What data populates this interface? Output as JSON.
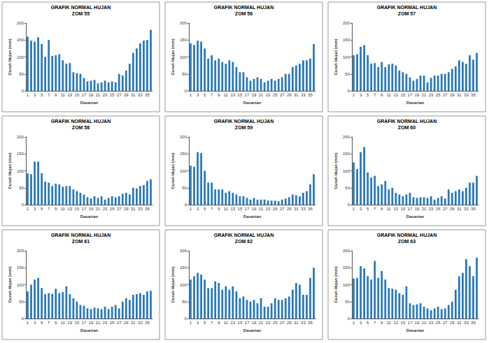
{
  "chart_data": [
    {
      "type": "bar",
      "title": "GRAFIK NORMAL HUJAN",
      "subtitle": "ZOM 55",
      "x_label": "Dasarian",
      "y_label": "Curah Hujan (mm)",
      "categories": [
        1,
        null,
        3,
        null,
        5,
        null,
        7,
        null,
        9,
        null,
        11,
        null,
        13,
        null,
        15,
        null,
        17,
        null,
        19,
        null,
        21,
        null,
        23,
        null,
        25,
        null,
        27,
        null,
        29,
        null,
        31,
        null,
        33,
        null,
        35,
        null
      ],
      "values": [
        160,
        148,
        145,
        158,
        138,
        100,
        150,
        103,
        105,
        108,
        90,
        80,
        82,
        55,
        52,
        50,
        38,
        28,
        30,
        32,
        22,
        25,
        30,
        25,
        28,
        25,
        50,
        45,
        60,
        80,
        112,
        125,
        140,
        148,
        150,
        180
      ],
      "color": "#2878b8",
      "ylim": [
        0,
        200
      ],
      "yticks": [
        0,
        50,
        100,
        150,
        200
      ],
      "grid": false
    },
    {
      "type": "bar",
      "title": "GRAFIK NORMAL HUJAN",
      "subtitle": "ZOM 56",
      "x_label": "Dasarian",
      "y_label": "Curah Hujan (mm)",
      "categories": [
        1,
        null,
        3,
        null,
        5,
        null,
        7,
        null,
        9,
        null,
        11,
        null,
        13,
        null,
        15,
        null,
        17,
        null,
        19,
        null,
        21,
        null,
        23,
        null,
        25,
        null,
        27,
        null,
        29,
        null,
        31,
        null,
        33,
        null,
        35,
        null
      ],
      "values": [
        140,
        135,
        148,
        145,
        125,
        95,
        105,
        90,
        95,
        85,
        80,
        90,
        85,
        70,
        55,
        55,
        40,
        30,
        35,
        40,
        35,
        25,
        30,
        35,
        30,
        35,
        40,
        50,
        50,
        70,
        75,
        80,
        90,
        90,
        95,
        138
      ],
      "color": "#2878b8",
      "ylim": [
        0,
        200
      ],
      "yticks": [
        0,
        50,
        100,
        150,
        200
      ],
      "grid": false
    },
    {
      "type": "bar",
      "title": "GRAFIK NORMAL HUJAN",
      "subtitle": "ZOM 57",
      "x_label": "Dasarian",
      "y_label": "Curah Hujan (mm)",
      "categories": [
        1,
        null,
        3,
        null,
        5,
        null,
        7,
        null,
        9,
        null,
        11,
        null,
        13,
        null,
        15,
        null,
        17,
        null,
        19,
        null,
        21,
        null,
        23,
        null,
        25,
        null,
        27,
        null,
        29,
        null,
        31,
        null,
        33,
        null,
        35,
        null
      ],
      "values": [
        105,
        108,
        130,
        135,
        105,
        80,
        82,
        70,
        85,
        70,
        78,
        80,
        75,
        60,
        55,
        50,
        40,
        30,
        35,
        45,
        45,
        25,
        38,
        45,
        45,
        50,
        50,
        55,
        65,
        72,
        90,
        85,
        80,
        105,
        92,
        112
      ],
      "color": "#2878b8",
      "ylim": [
        0,
        200
      ],
      "yticks": [
        0,
        50,
        100,
        150,
        200
      ],
      "grid": false
    },
    {
      "type": "bar",
      "title": "GRAFIK NORMAL HUJAN",
      "subtitle": "ZOM 58",
      "x_label": "Dasarian",
      "y_label": "Curah Hujan (mm)",
      "categories": [
        1,
        null,
        3,
        null,
        5,
        null,
        7,
        null,
        9,
        null,
        11,
        null,
        13,
        null,
        15,
        null,
        17,
        null,
        19,
        null,
        21,
        null,
        23,
        null,
        25,
        null,
        27,
        null,
        29,
        null,
        31,
        null,
        33,
        null,
        35,
        null
      ],
      "values": [
        92,
        90,
        127,
        127,
        93,
        68,
        65,
        55,
        62,
        60,
        53,
        55,
        55,
        45,
        40,
        35,
        30,
        22,
        18,
        25,
        20,
        25,
        15,
        20,
        25,
        22,
        25,
        32,
        35,
        30,
        50,
        48,
        55,
        58,
        70,
        75
      ],
      "color": "#2878b8",
      "ylim": [
        0,
        200
      ],
      "yticks": [
        0,
        50,
        100,
        150,
        200
      ],
      "grid": false
    },
    {
      "type": "bar",
      "title": "GRAFIK NORMAL HUJAN",
      "subtitle": "ZOM 59",
      "x_label": "Dasarian",
      "y_label": "Curah Hujan (mm)",
      "categories": [
        1,
        null,
        3,
        null,
        5,
        null,
        7,
        null,
        9,
        null,
        11,
        null,
        13,
        null,
        15,
        null,
        17,
        null,
        19,
        null,
        21,
        null,
        23,
        null,
        25,
        null,
        27,
        null,
        29,
        null,
        31,
        null,
        33,
        null,
        35,
        null
      ],
      "values": [
        115,
        112,
        155,
        152,
        100,
        65,
        65,
        45,
        45,
        45,
        35,
        40,
        35,
        30,
        25,
        25,
        20,
        15,
        20,
        15,
        15,
        15,
        12,
        12,
        12,
        10,
        15,
        18,
        22,
        30,
        28,
        25,
        35,
        40,
        60,
        90
      ],
      "color": "#2878b8",
      "ylim": [
        0,
        200
      ],
      "yticks": [
        0,
        50,
        100,
        150,
        200
      ],
      "grid": false
    },
    {
      "type": "bar",
      "title": "GRAFIK NORMAL HUJAN",
      "subtitle": "ZOM 60",
      "x_label": "Dasarian",
      "y_label": "Curah Hujan (mm)",
      "categories": [
        1,
        null,
        3,
        null,
        5,
        null,
        7,
        null,
        9,
        null,
        11,
        null,
        13,
        null,
        15,
        null,
        17,
        null,
        19,
        null,
        21,
        null,
        23,
        null,
        25,
        null,
        27,
        null,
        29,
        null,
        31,
        null,
        33,
        null,
        35,
        null
      ],
      "values": [
        125,
        105,
        155,
        170,
        95,
        80,
        85,
        55,
        60,
        70,
        45,
        50,
        35,
        30,
        25,
        30,
        35,
        22,
        20,
        22,
        22,
        20,
        25,
        15,
        20,
        25,
        18,
        45,
        35,
        40,
        45,
        40,
        50,
        65,
        65,
        85
      ],
      "color": "#2878b8",
      "ylim": [
        0,
        200
      ],
      "yticks": [
        0,
        50,
        100,
        150,
        200
      ],
      "grid": false
    },
    {
      "type": "bar",
      "title": "GRAFIK NORMAL HUJAN",
      "subtitle": "ZOM 61",
      "x_label": "Dasarian",
      "y_label": "Curah Hujan (mm)",
      "categories": [
        1,
        null,
        3,
        null,
        5,
        null,
        7,
        null,
        9,
        null,
        11,
        null,
        13,
        null,
        15,
        null,
        17,
        null,
        19,
        null,
        21,
        null,
        23,
        null,
        25,
        null,
        27,
        null,
        29,
        null,
        31,
        null,
        33,
        null,
        35,
        null
      ],
      "values": [
        80,
        100,
        115,
        120,
        90,
        72,
        75,
        73,
        88,
        75,
        78,
        95,
        72,
        60,
        50,
        40,
        38,
        30,
        28,
        32,
        30,
        28,
        35,
        28,
        35,
        40,
        30,
        50,
        60,
        55,
        70,
        72,
        75,
        70,
        80,
        82
      ],
      "color": "#2878b8",
      "ylim": [
        0,
        200
      ],
      "yticks": [
        0,
        50,
        100,
        150,
        200
      ],
      "grid": false
    },
    {
      "type": "bar",
      "title": "GRAFIK NORMAL HUJAN",
      "subtitle": "ZOM 62",
      "x_label": "Dasarian",
      "y_label": "Curah Hujan (mm)",
      "categories": [
        1,
        null,
        3,
        null,
        5,
        null,
        7,
        null,
        9,
        null,
        11,
        null,
        13,
        null,
        15,
        null,
        17,
        null,
        19,
        null,
        21,
        null,
        23,
        null,
        25,
        null,
        27,
        null,
        29,
        null,
        31,
        null,
        33,
        null,
        35,
        null
      ],
      "values": [
        115,
        125,
        135,
        130,
        115,
        90,
        90,
        110,
        105,
        85,
        95,
        85,
        95,
        80,
        60,
        65,
        55,
        50,
        55,
        45,
        60,
        35,
        35,
        45,
        60,
        55,
        55,
        60,
        65,
        85,
        105,
        100,
        70,
        70,
        120,
        150
      ],
      "color": "#2878b8",
      "ylim": [
        0,
        200
      ],
      "yticks": [
        0,
        50,
        100,
        150,
        200
      ],
      "grid": false
    },
    {
      "type": "bar",
      "title": "GRAFIK NORMAL HUJAN",
      "subtitle": "ZOM 63",
      "x_label": "Dasarian",
      "y_label": "Curah Hujan (mm)",
      "categories": [
        1,
        null,
        3,
        null,
        5,
        null,
        7,
        null,
        9,
        null,
        11,
        null,
        13,
        null,
        15,
        null,
        17,
        null,
        19,
        null,
        21,
        null,
        23,
        null,
        25,
        null,
        27,
        null,
        29,
        null,
        31,
        null,
        33,
        null,
        35,
        null
      ],
      "values": [
        118,
        120,
        155,
        148,
        125,
        115,
        170,
        120,
        140,
        115,
        90,
        88,
        85,
        75,
        70,
        95,
        45,
        40,
        42,
        45,
        35,
        30,
        25,
        30,
        35,
        28,
        30,
        40,
        50,
        85,
        125,
        135,
        175,
        155,
        125,
        180
      ],
      "color": "#2878b8",
      "ylim": [
        0,
        200
      ],
      "yticks": [
        0,
        50,
        100,
        150,
        200
      ],
      "grid": false
    }
  ]
}
